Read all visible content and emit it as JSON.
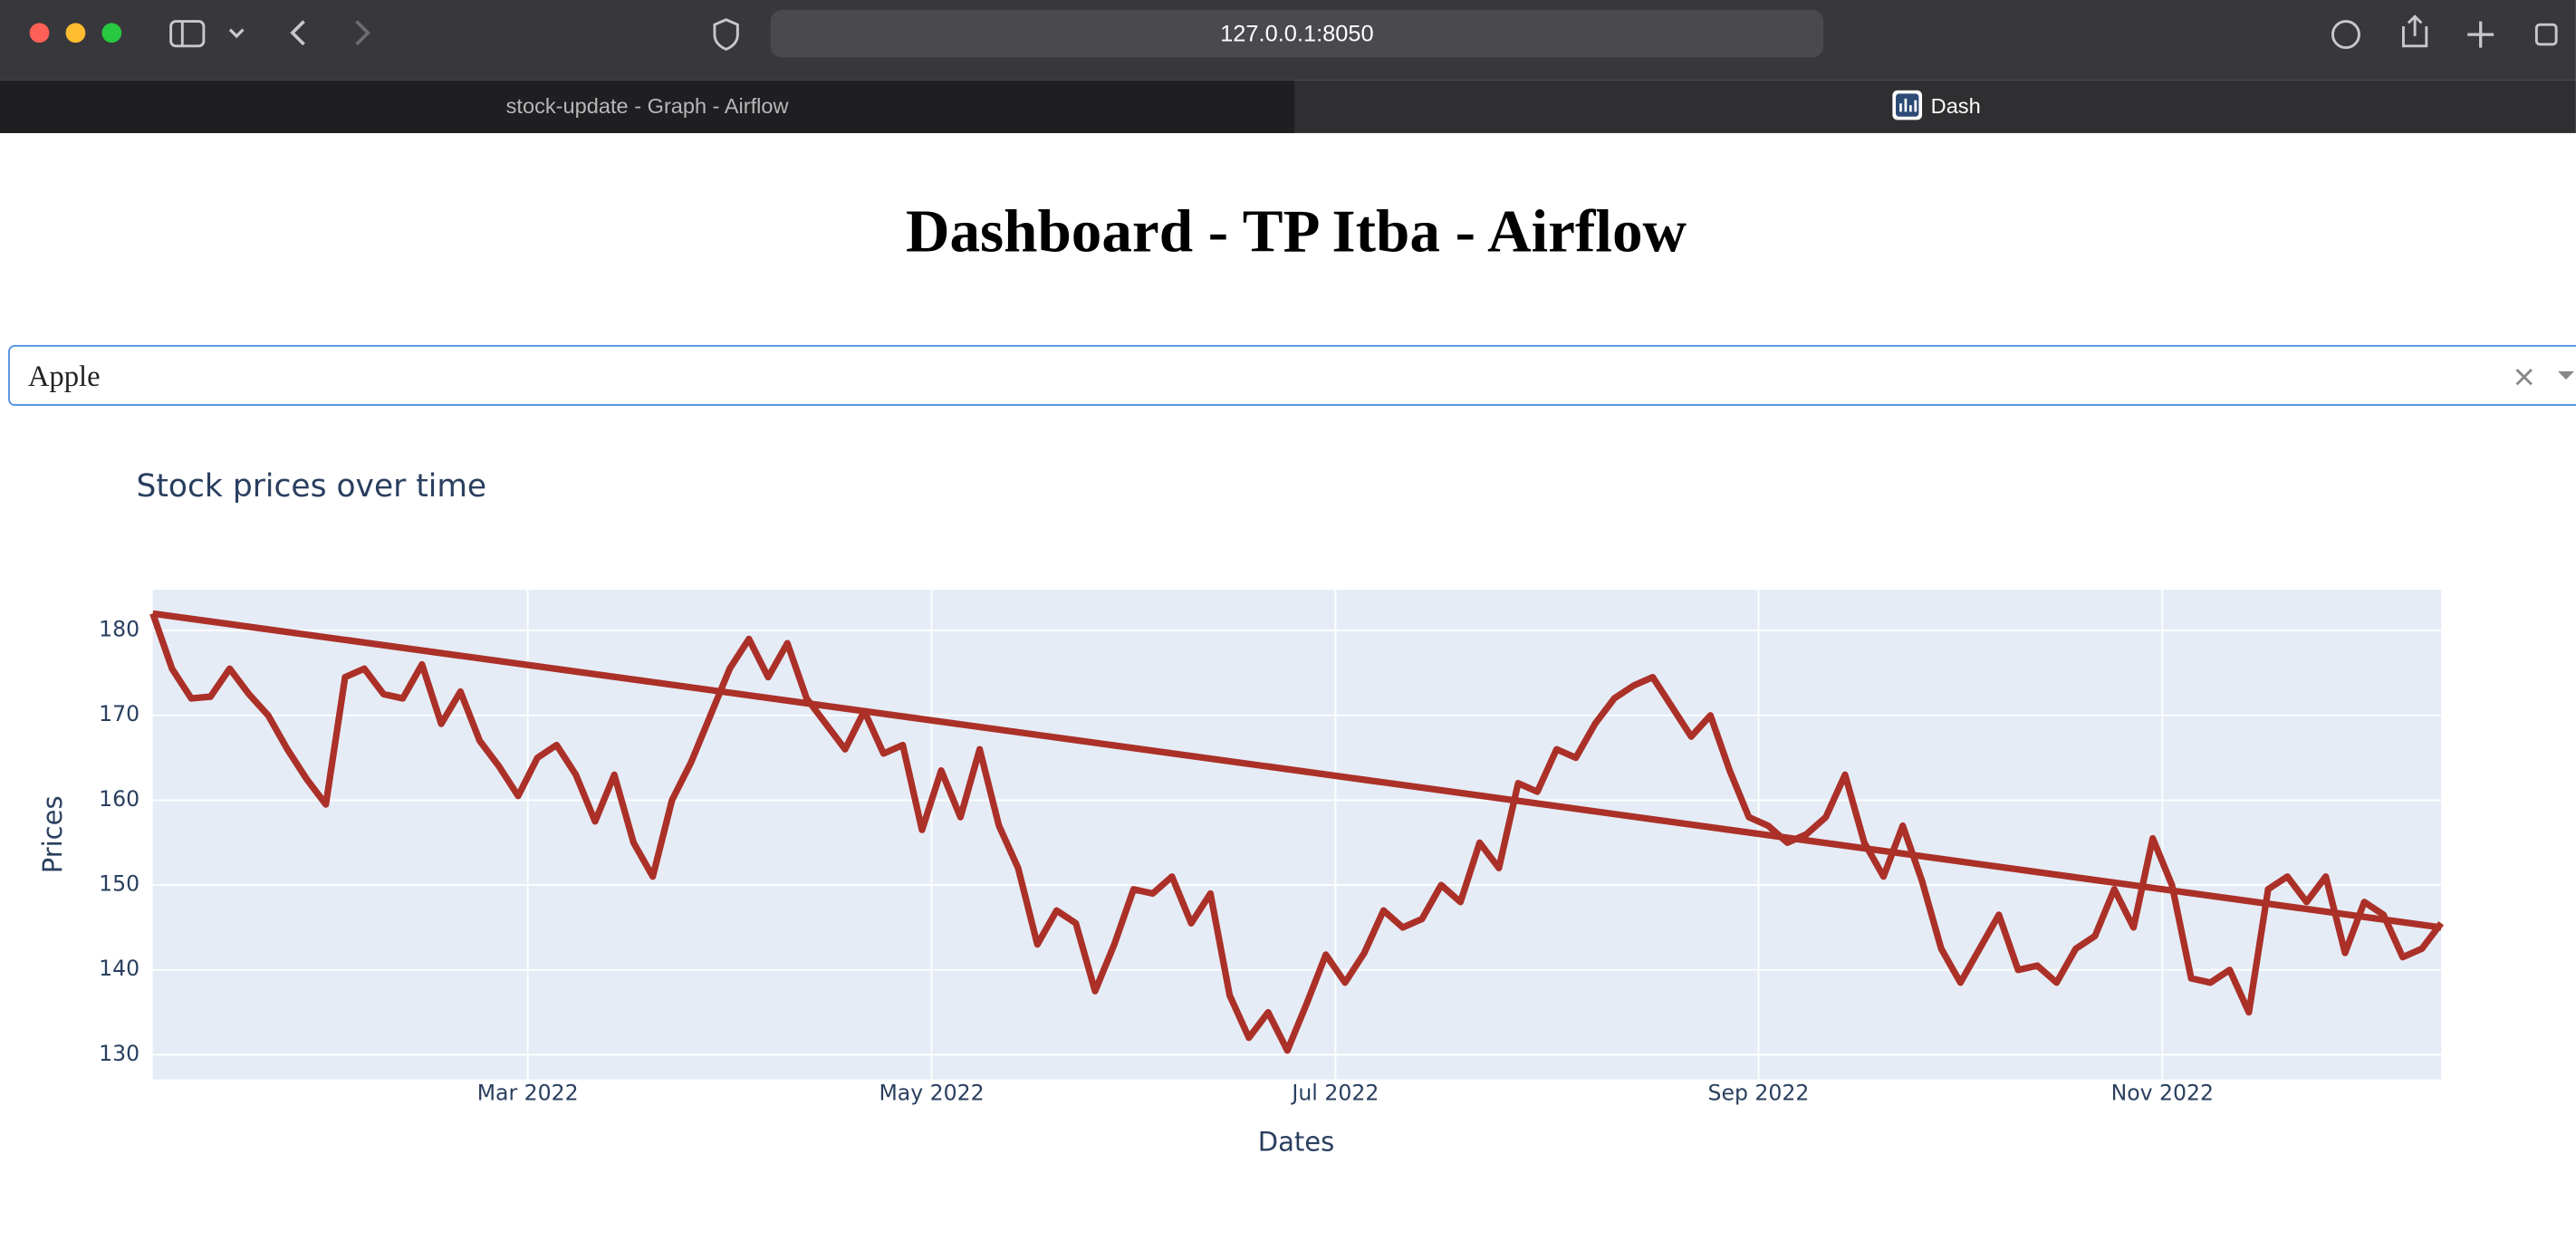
{
  "browser": {
    "url": "127.0.0.1:8050",
    "tabs": [
      "stock-update - Graph - Airflow",
      "Dash"
    ]
  },
  "page": {
    "heading": "Dashboard - TP Itba - Airflow",
    "dropdown": {
      "value": "Apple"
    }
  },
  "chart_data": {
    "type": "line",
    "title": "Stock prices over time",
    "x_label": "Dates",
    "y_label": "Prices",
    "series": [
      {
        "color": "#ab3028",
        "x": [
          "2022-01",
          "2022-01",
          "2022-01",
          "2022-01",
          "2022-01",
          "2022-01",
          "2022-01",
          "2022-01",
          "2022-01",
          "2022-01",
          "2022-02",
          "2022-02",
          "2022-02",
          "2022-02",
          "2022-02",
          "2022-02",
          "2022-02",
          "2022-02",
          "2022-02",
          "2022-02",
          "2022-03",
          "2022-03",
          "2022-03",
          "2022-03",
          "2022-03",
          "2022-03",
          "2022-03",
          "2022-03",
          "2022-03",
          "2022-03",
          "2022-03",
          "2022-04",
          "2022-04",
          "2022-04",
          "2022-04",
          "2022-04",
          "2022-04",
          "2022-04",
          "2022-04",
          "2022-04",
          "2022-04",
          "2022-05",
          "2022-05",
          "2022-05",
          "2022-05",
          "2022-05",
          "2022-05",
          "2022-05",
          "2022-05",
          "2022-05",
          "2022-05",
          "2022-05",
          "2022-06",
          "2022-06",
          "2022-06",
          "2022-06",
          "2022-06",
          "2022-06",
          "2022-06",
          "2022-06",
          "2022-06",
          "2022-06",
          "2022-07",
          "2022-07",
          "2022-07",
          "2022-07",
          "2022-07",
          "2022-07",
          "2022-07",
          "2022-07",
          "2022-07",
          "2022-07",
          "2022-08",
          "2022-08",
          "2022-08",
          "2022-08",
          "2022-08",
          "2022-08",
          "2022-08",
          "2022-08",
          "2022-08",
          "2022-08",
          "2022-08",
          "2022-08",
          "2022-09",
          "2022-09",
          "2022-09",
          "2022-09",
          "2022-09",
          "2022-09",
          "2022-09",
          "2022-09",
          "2022-09",
          "2022-09",
          "2022-10",
          "2022-10",
          "2022-10",
          "2022-10",
          "2022-10",
          "2022-10",
          "2022-10",
          "2022-10",
          "2022-10",
          "2022-10",
          "2022-10",
          "2022-11",
          "2022-11",
          "2022-11",
          "2022-11",
          "2022-11",
          "2022-11",
          "2022-11",
          "2022-11",
          "2022-11",
          "2022-11",
          "2022-12",
          "2022-12",
          "2022-12",
          "2022-12",
          "2022-12"
        ],
        "values": [
          182,
          175.5,
          172,
          172.2,
          175.5,
          172.5,
          170,
          166,
          162.5,
          159.5,
          174.5,
          175.5,
          172.5,
          172,
          176,
          169,
          172.8,
          167,
          164,
          160.5,
          165,
          166.5,
          163,
          157.5,
          163,
          155,
          151,
          160,
          164.5,
          170,
          175.5,
          179,
          174.5,
          178.5,
          172,
          169,
          166,
          170.5,
          165.5,
          166.5,
          156.5,
          163.5,
          158,
          166,
          157,
          152,
          143,
          147,
          145.5,
          137.5,
          143,
          149.5,
          149,
          151,
          145.5,
          149,
          137,
          132,
          135,
          130.5,
          136,
          141.8,
          138.5,
          142,
          147,
          145,
          146,
          150,
          148,
          155,
          152,
          162,
          161,
          166,
          165,
          169,
          172,
          173.5,
          174.5,
          171,
          167.5,
          170,
          163.5,
          158,
          157,
          155,
          156,
          158,
          163,
          155,
          151,
          157,
          150.5,
          142.5,
          138.5,
          142.5,
          146.5,
          140,
          140.5,
          138.5,
          142.5,
          144,
          149.5,
          145,
          155.5,
          150,
          139,
          138.5,
          140,
          135,
          149.5,
          151,
          148,
          151,
          142,
          148,
          146.5,
          141.5,
          142.5,
          145.5
        ]
      },
      {
        "color": "#ab3028",
        "x": [
          "2022-01",
          "2022-12"
        ],
        "values": [
          182,
          145
        ]
      }
    ],
    "xticks": [
      {
        "value": "2022-03",
        "label": "Mar 2022"
      },
      {
        "value": "2022-05",
        "label": "May 2022"
      },
      {
        "value": "2022-07",
        "label": "Jul 2022"
      },
      {
        "value": "2022-09",
        "label": "Sep 2022"
      },
      {
        "value": "2022-11",
        "label": "Nov 2022"
      }
    ],
    "ylim": [
      127.1,
      184.8
    ],
    "yticks": [
      130,
      140,
      150,
      160,
      170,
      180
    ],
    "grid": true,
    "plot_background": "#e5ecf6"
  }
}
